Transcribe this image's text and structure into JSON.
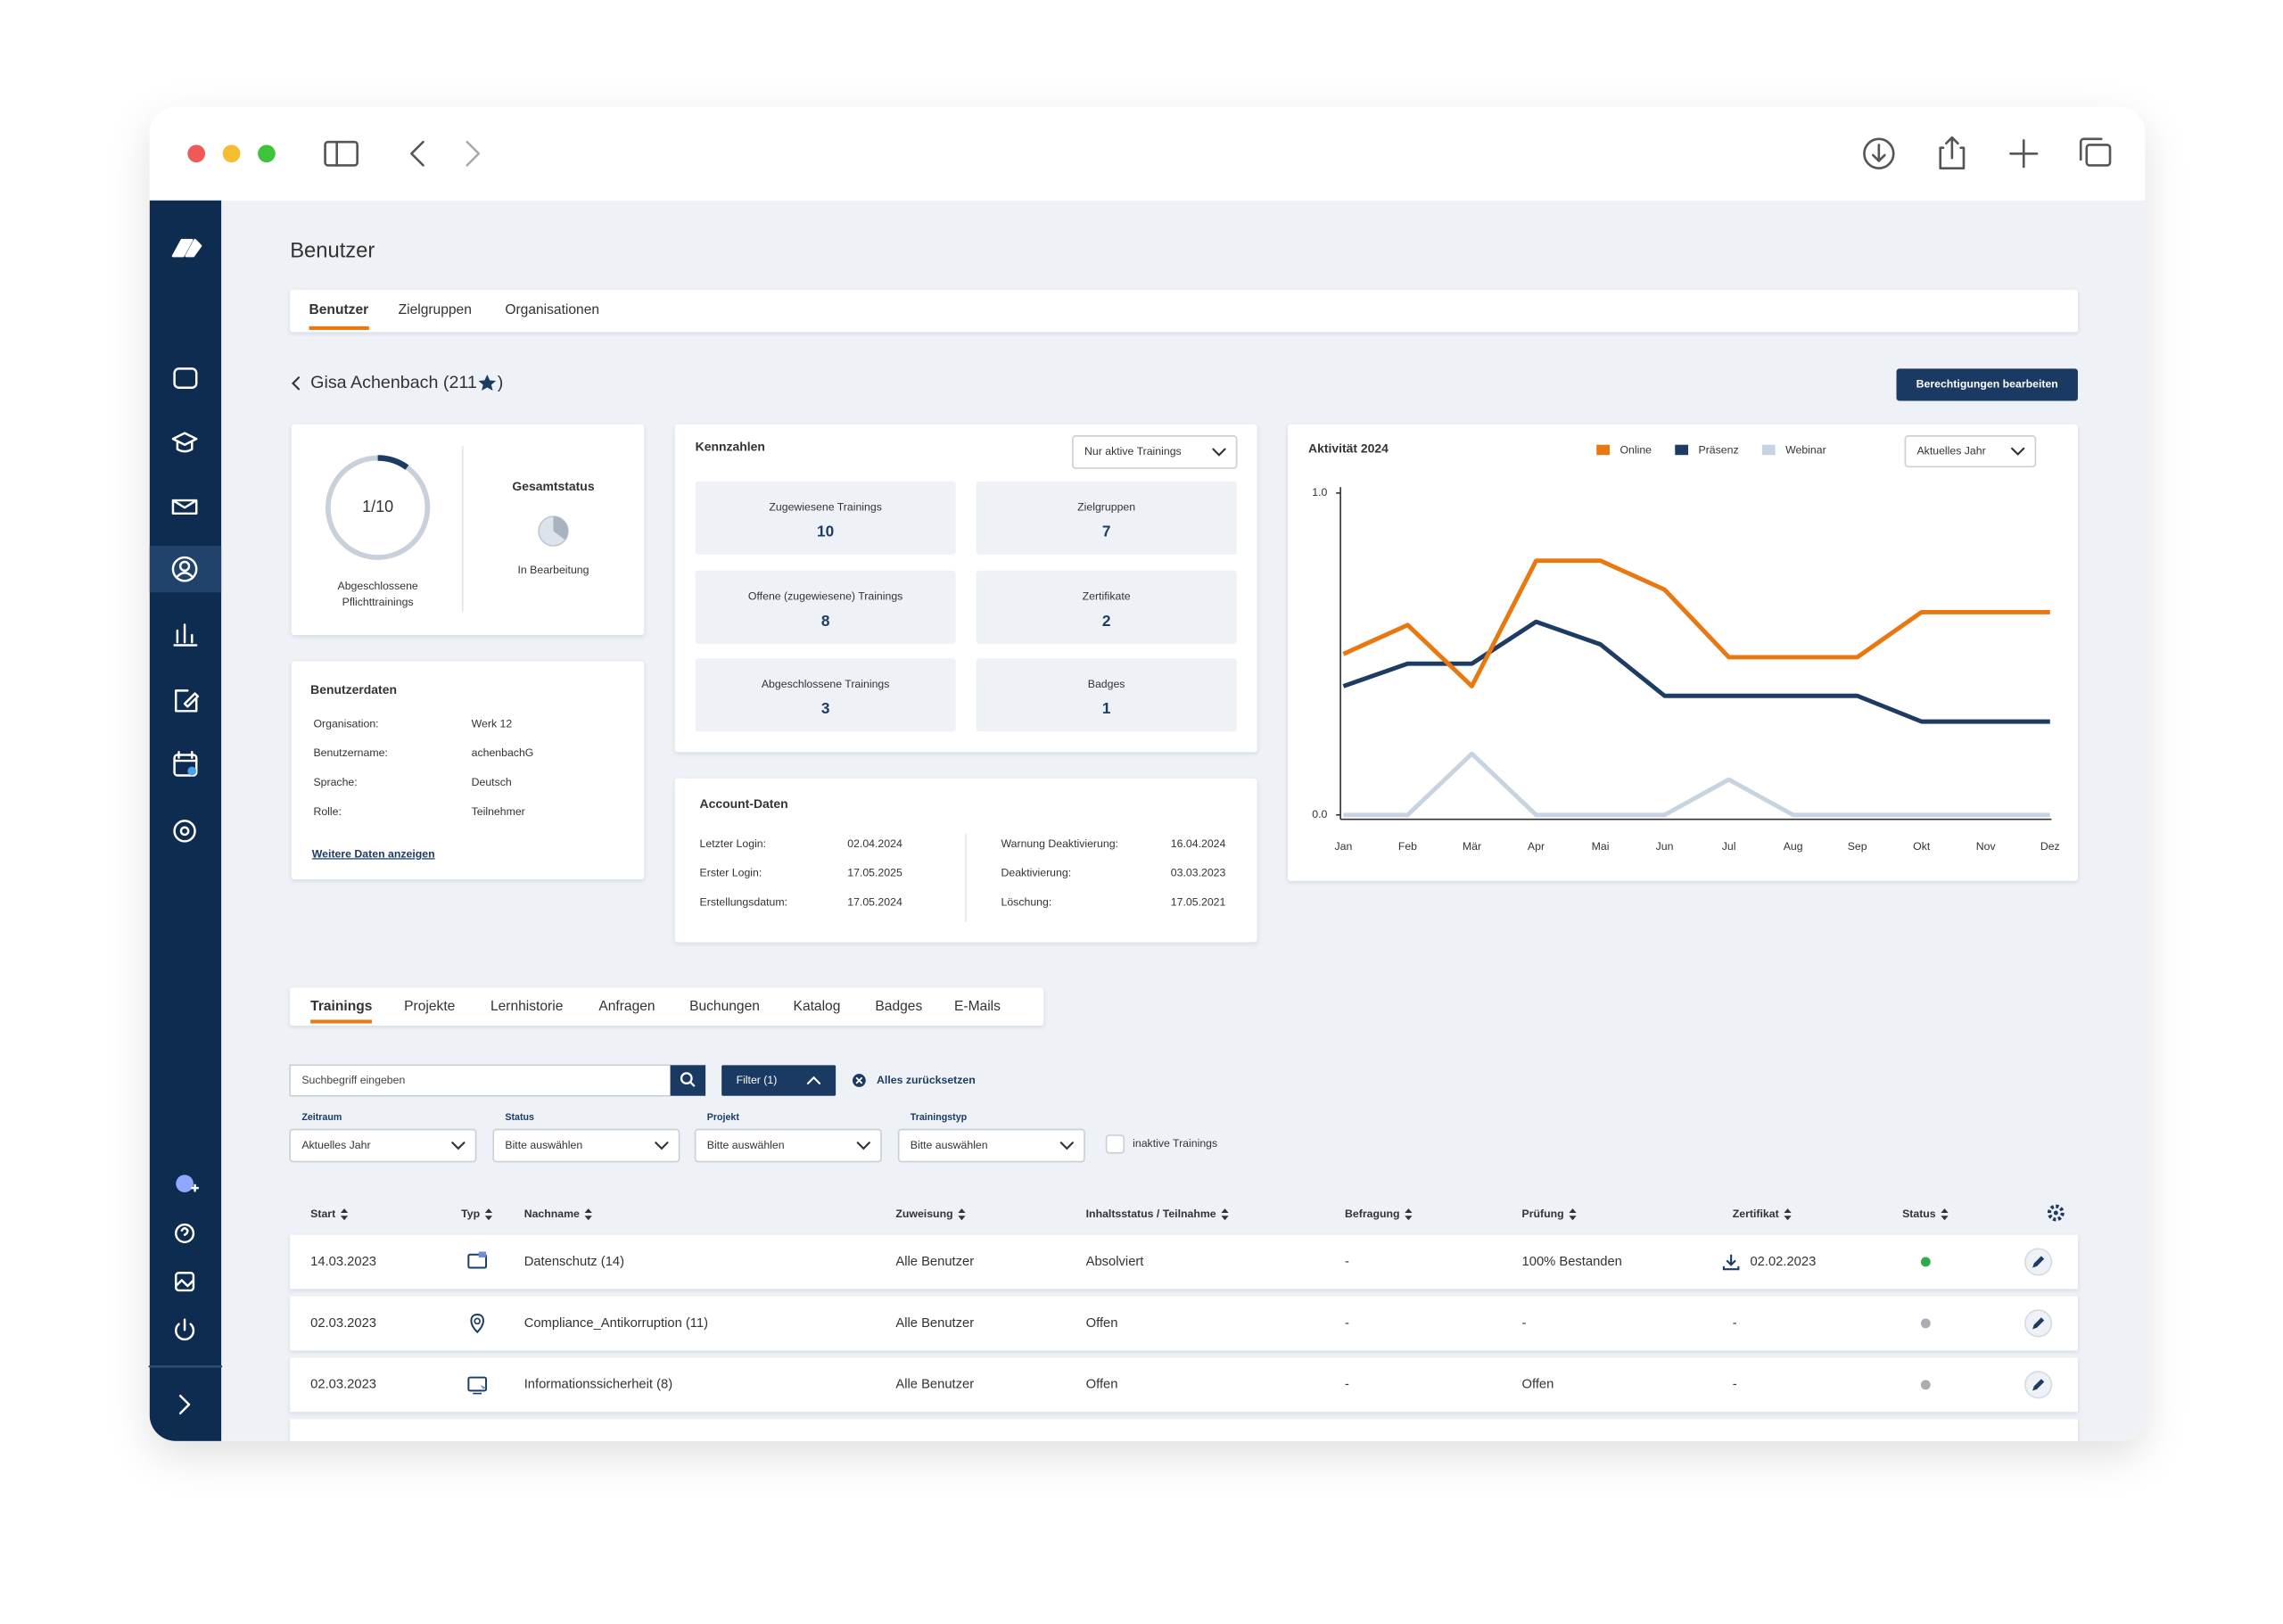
{
  "header": {
    "title": "Benutzer",
    "tabs": [
      "Benutzer",
      "Zielgruppen",
      "Organisationen"
    ]
  },
  "profile": {
    "name_start": "Gisa Achenbach (211",
    "name_end": ")",
    "button": "Berechtigungen bearbeiten"
  },
  "progress": {
    "completed": 1,
    "total": 10,
    "label": "1/10",
    "caption": [
      "Abgeschlossene",
      "Pflichttrainings"
    ]
  },
  "overall_status": {
    "title": "Gesamtstatus",
    "value": "In Bearbeitung"
  },
  "user_data": {
    "title": "Benutzerdaten",
    "rows": [
      [
        "Organisation:",
        "Werk 12"
      ],
      [
        "Benutzername:",
        "achenbachG"
      ],
      [
        "Sprache:",
        "Deutsch"
      ],
      [
        "Rolle:",
        "Teilnehmer"
      ]
    ],
    "link": "Weitere Daten anzeigen"
  },
  "key_figures": {
    "title": "Kennzahlen",
    "dropdown": "Nur aktive Trainings",
    "tiles": [
      {
        "label": "Zugewiesene Trainings",
        "value": 10
      },
      {
        "label": "Zielgruppen",
        "value": 7
      },
      {
        "label": "Offene (zugewiesene) Trainings",
        "value": 8
      },
      {
        "label": "Zertifikate",
        "value": 2
      },
      {
        "label": "Abgeschlossene Trainings",
        "value": 3
      },
      {
        "label": "Badges",
        "value": 1
      }
    ]
  },
  "account": {
    "title": "Account-Daten",
    "left": [
      [
        "Letzter Login:",
        "02.04.2024"
      ],
      [
        "Erster Login:",
        "17.05.2025"
      ],
      [
        "Erstellungsdatum:",
        "17.05.2024"
      ]
    ],
    "right": [
      [
        "Warnung Deaktivierung:",
        "16.04.2024"
      ],
      [
        "Deaktivierung:",
        "03.03.2023"
      ],
      [
        "Löschung:",
        "17.05.2021"
      ]
    ]
  },
  "chart_data": {
    "type": "line",
    "title": "Aktivität 2024",
    "dropdown": "Aktuelles Jahr",
    "legend": "top",
    "categories": [
      "Jan",
      "Feb",
      "Mär",
      "Apr",
      "Mai",
      "Jun",
      "Jul",
      "Aug",
      "Sep",
      "Okt",
      "Nov",
      "Dez"
    ],
    "series": [
      {
        "name": "Online",
        "color": "#e8780f",
        "values": [
          0.5,
          0.59,
          0.4,
          0.79,
          0.79,
          0.7,
          0.49,
          0.49,
          0.49,
          0.63,
          0.63,
          0.63
        ]
      },
      {
        "name": "Präsenz",
        "color": "#1d3c64",
        "values": [
          0.4,
          0.47,
          0.47,
          0.6,
          0.53,
          0.37,
          0.37,
          0.37,
          0.37,
          0.29,
          0.29,
          0.29
        ]
      },
      {
        "name": "Webinar",
        "color": "#c8d3e0",
        "values": [
          0,
          0,
          0.19,
          0,
          0,
          0,
          0.11,
          0,
          0,
          0,
          0,
          0
        ]
      }
    ],
    "ylim": [
      0,
      1
    ],
    "yticks": [
      {
        "value": 0,
        "label": "0.0"
      },
      {
        "value": 1,
        "label": "1.0"
      }
    ],
    "grid": false
  },
  "trainings": {
    "tabs": [
      "Trainings",
      "Projekte",
      "Lernhistorie",
      "Anfragen",
      "Buchungen",
      "Katalog",
      "Badges",
      "E-Mails"
    ],
    "search_placeholder": "Suchbegriff eingeben",
    "filter_button": "Filter (1)",
    "reset": "Alles zurücksetzen",
    "filters": [
      {
        "label": "Zeitraum",
        "value": "Aktuelles Jahr"
      },
      {
        "label": "Status",
        "value": "Bitte auswählen"
      },
      {
        "label": "Projekt",
        "value": "Bitte auswählen"
      },
      {
        "label": "Trainingstyp",
        "value": "Bitte auswählen"
      }
    ],
    "checkbox": "inaktive Trainings",
    "columns": [
      "Start",
      "Typ",
      "Nachname",
      "Zuweisung",
      "Inhaltsstatus / Teilnahme",
      "Befragung",
      "Prüfung",
      "Zertifikat",
      "Status"
    ],
    "rows": [
      [
        "14.03.2023",
        "Datenschutz (14)",
        "Alle Benutzer",
        "Absolviert",
        "-",
        "100% Bestanden",
        "02.02.2023"
      ],
      [
        "02.03.2023",
        "Compliance_Antikorruption (11)",
        "Alle Benutzer",
        "Offen",
        "-",
        "-",
        "-"
      ],
      [
        "02.03.2023",
        "Informationssicherheit (8)",
        "Alle Benutzer",
        "Offen",
        "-",
        "Offen",
        "-"
      ]
    ],
    "status_colors": [
      "#2eaa4f",
      "#a9aeb5",
      "#a9aeb5"
    ]
  }
}
